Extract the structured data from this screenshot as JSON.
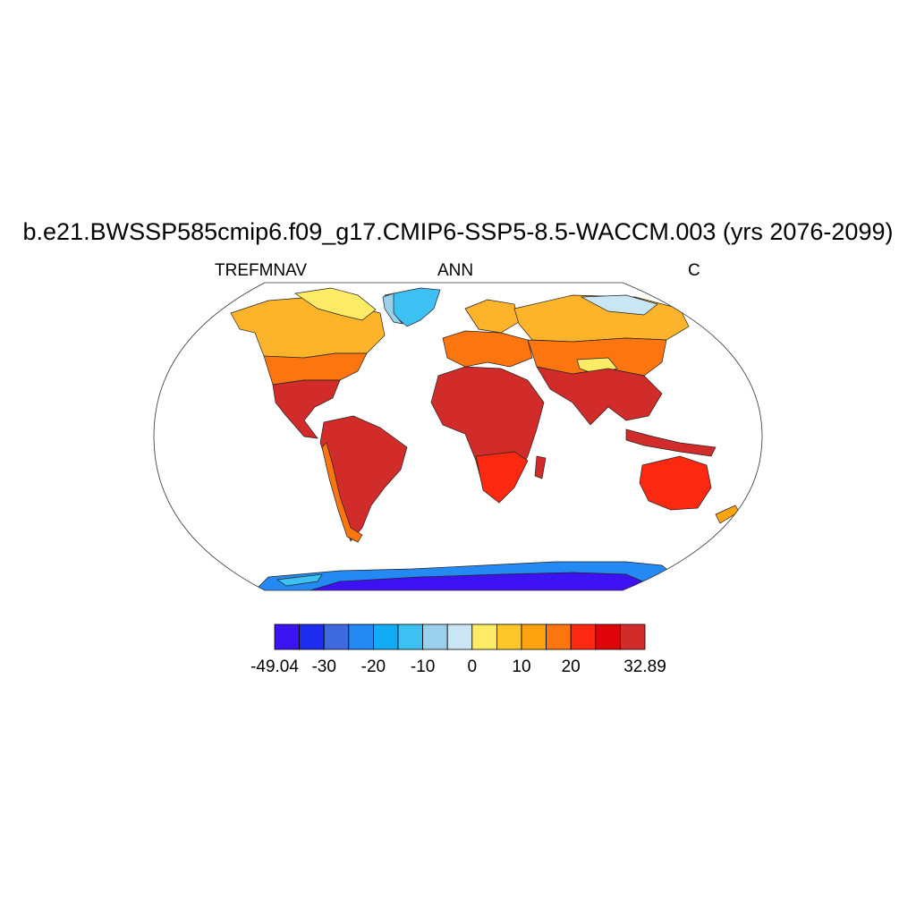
{
  "title": "b.e21.BWSSP585cmip6.f09_g17.CMIP6-SSP5-8.5-WACCM.003 (yrs 2076-2099)",
  "subtitle_left": "TREFMNAV",
  "subtitle_center": "ANN",
  "subtitle_right": "C",
  "projection": "Robinson",
  "colorbar": {
    "colors": [
      "#3c12f2",
      "#1e2ef0",
      "#3e6adf",
      "#2489f3",
      "#11aaf3",
      "#3dc1f3",
      "#9bd0ed",
      "#cae6f4",
      "#fdeb66",
      "#fcc72a",
      "#fda30f",
      "#fd750e",
      "#fd2810",
      "#df0409",
      "#d12b2a"
    ],
    "labels": [
      "-49.04",
      "-30",
      "-20",
      "-10",
      "0",
      "10",
      "20",
      "32.89"
    ],
    "label_values": [
      -49.04,
      -30,
      -20,
      -10,
      0,
      10,
      20,
      32.89
    ]
  }
}
